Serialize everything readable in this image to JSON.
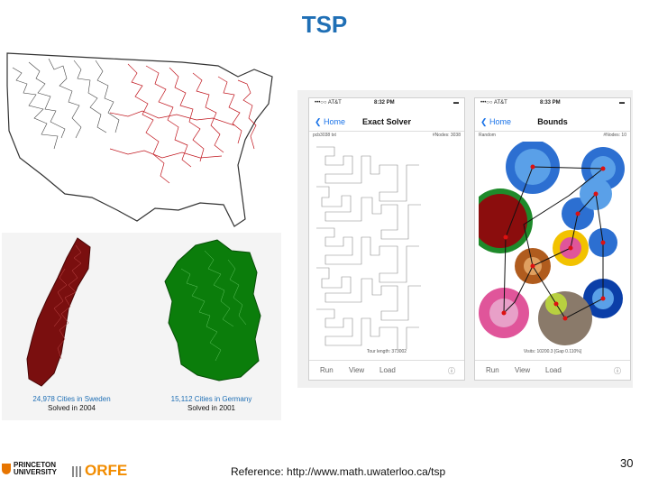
{
  "slide": {
    "title": "TSP",
    "reference": "Reference:  http://www.math.uwaterloo.ca/tsp",
    "page_number": "30"
  },
  "maps": {
    "sweden": {
      "caption_line1": "24,978 Cities in Sweden",
      "caption_line2": "Solved in 2004",
      "color": "#7a0f0f"
    },
    "germany": {
      "caption_line1": "15,112 Cities in Germany",
      "caption_line2": "Solved in 2001",
      "color": "#0b7d0b"
    },
    "usa": {
      "color": "#c0141c"
    }
  },
  "phones": [
    {
      "carrier": "•••○○ AT&T",
      "time": "8:32 PM",
      "back_label": "❮ Home",
      "title": "Exact Solver",
      "sub_left": "pcb3038 txt",
      "sub_right": "#Nodes: 3038",
      "footer": "Tour length: 373002",
      "toolbar": [
        "Run",
        "View",
        "Load"
      ]
    },
    {
      "carrier": "•••○○ AT&T",
      "time": "8:33 PM",
      "back_label": "❮ Home",
      "title": "Bounds",
      "sub_left": "Random",
      "sub_right": "#Nodes: 10",
      "footer": "Visits: 10200.3 [Gap 0.110%]",
      "toolbar": [
        "Run",
        "View",
        "Load"
      ]
    }
  ],
  "logos": {
    "princeton_line1": "PRINCETON",
    "princeton_line2": "UNIVERSITY",
    "orfe": "ORFE"
  }
}
